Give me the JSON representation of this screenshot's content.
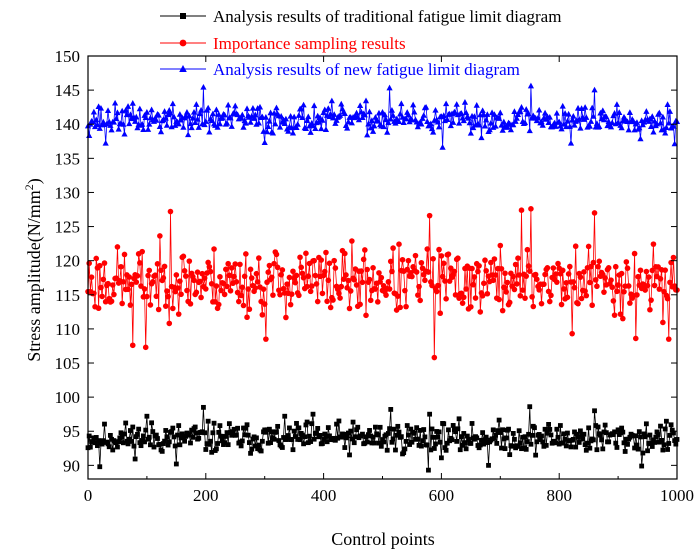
{
  "chart_data": {
    "type": "line",
    "title": "",
    "xlabel": "Control points",
    "ylabel": "Stress amplitude(N/mm²)",
    "ylabel_main": "Stress amplitude(N/mm",
    "ylabel_sup": "2",
    "ylabel_tail": ")",
    "xlim": [
      0,
      1000
    ],
    "ylim": [
      88,
      150
    ],
    "xticks": [
      0,
      200,
      400,
      600,
      800,
      1000
    ],
    "yticks": [
      90,
      95,
      100,
      105,
      110,
      115,
      120,
      125,
      130,
      135,
      140,
      145,
      150
    ],
    "grid": false,
    "legend_position": "top",
    "point_spacing": 2,
    "series": [
      {
        "name": "Analysis results of traditional fatigue limit diagram",
        "color": "#000000",
        "marker": "square",
        "mean": 94,
        "spread": 1.6,
        "min": 89.3,
        "max": 98.6,
        "seed": 11,
        "peaks": [
          [
            100,
            97.2
          ],
          [
            196,
            98.5
          ],
          [
            382,
            97.5
          ],
          [
            514,
            98.2
          ],
          [
            580,
            97.5
          ],
          [
            750,
            98.6
          ],
          [
            860,
            98.0
          ]
        ],
        "troughs": [
          [
            20,
            89.8
          ],
          [
            150,
            90.2
          ],
          [
            578,
            89.3
          ],
          [
            680,
            90.0
          ],
          [
            940,
            89.9
          ]
        ]
      },
      {
        "name": "Importance sampling results",
        "color": "#ff0000",
        "marker": "circle",
        "mean": 117,
        "spread": 3.4,
        "min": 105.8,
        "max": 127.6,
        "seed": 23,
        "peaks": [
          [
            140,
            127.2
          ],
          [
            580,
            126.6
          ],
          [
            735,
            127.4
          ],
          [
            751,
            127.6
          ],
          [
            860,
            127.0
          ]
        ],
        "troughs": [
          [
            75,
            107.6
          ],
          [
            98,
            107.3
          ],
          [
            301,
            108.5
          ],
          [
            588,
            105.8
          ],
          [
            822,
            109.3
          ],
          [
            929,
            108.6
          ],
          [
            985,
            108.5
          ]
        ]
      },
      {
        "name": "Analysis results of new fatigue limit diagram",
        "color": "#0000ff",
        "marker": "triangle",
        "mean": 140.7,
        "spread": 1.5,
        "min": 136.6,
        "max": 145.6,
        "seed": 37,
        "peaks": [
          [
            195,
            145.4
          ],
          [
            512,
            145.3
          ],
          [
            752,
            145.6
          ],
          [
            860,
            145.0
          ]
        ],
        "troughs": [
          [
            30,
            137.2
          ],
          [
            300,
            137.3
          ],
          [
            602,
            136.6
          ],
          [
            820,
            137.2
          ],
          [
            995,
            137.1
          ]
        ]
      }
    ]
  }
}
